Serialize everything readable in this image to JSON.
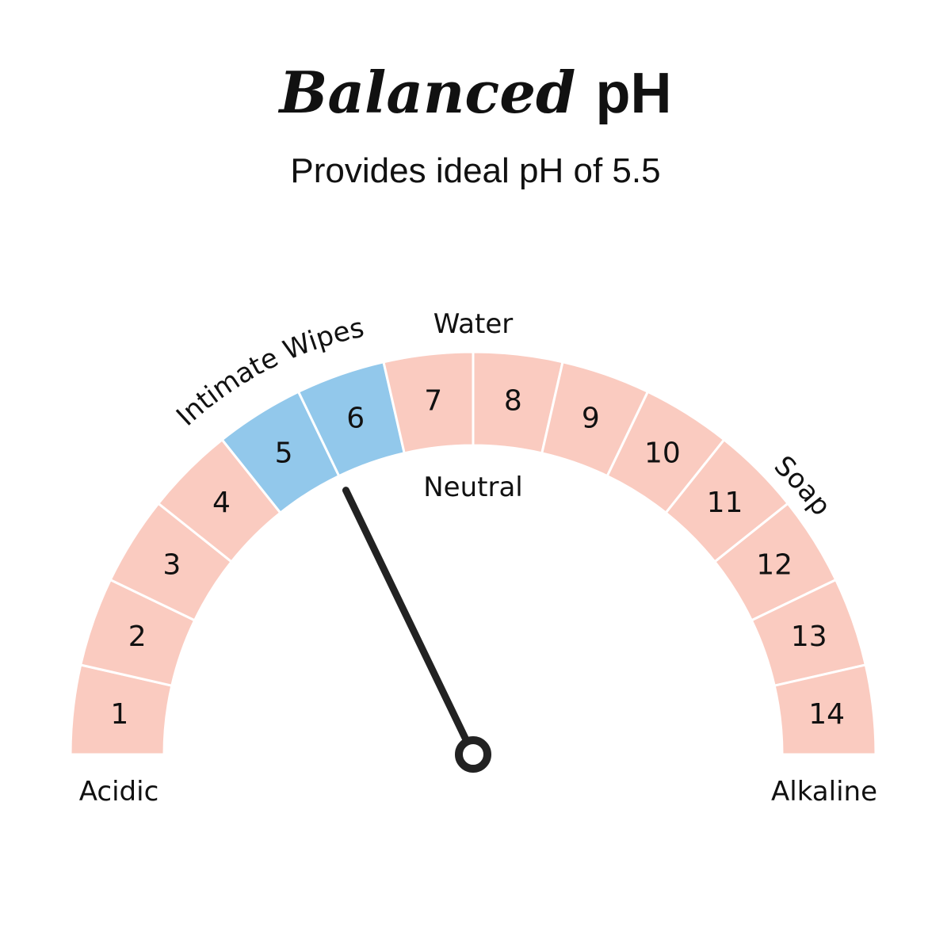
{
  "header": {
    "title_script": "Balanced",
    "title_plain": "pH",
    "subtitle": "Provides ideal pH of 5.5"
  },
  "gauge": {
    "min": 1,
    "max": 14,
    "pointer_value": 5.5,
    "segments": [
      "1",
      "2",
      "3",
      "4",
      "5",
      "6",
      "7",
      "8",
      "9",
      "10",
      "11",
      "12",
      "13",
      "14"
    ],
    "highlight_values": [
      5,
      6
    ],
    "colors": {
      "segment": "#FACBC0",
      "highlight": "#92C8EB",
      "separator": "#FFFFFF",
      "needle": "#222222",
      "text": "#111111"
    },
    "labels": {
      "intimate_wipes": "Intimate Wipes",
      "water": "Water",
      "neutral": "Neutral",
      "soap": "Soap",
      "acidic": "Acidic",
      "alkaline": "Alkaline"
    }
  }
}
